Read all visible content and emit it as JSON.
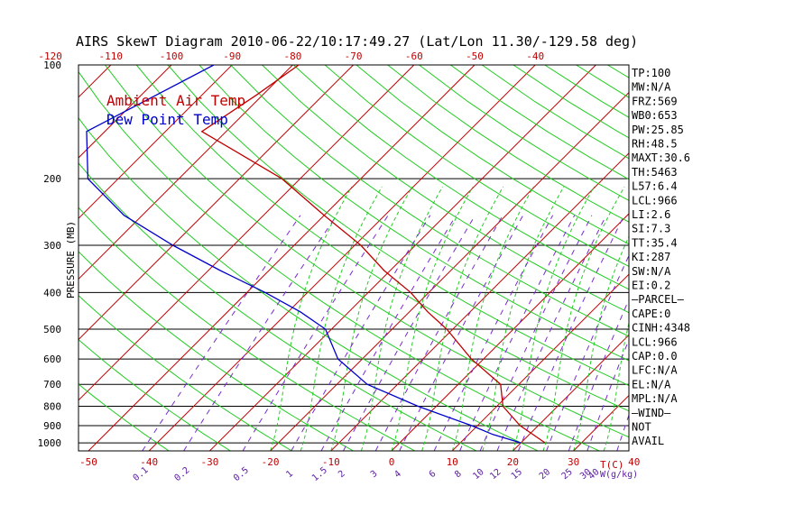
{
  "chart_data": {
    "type": "line",
    "title": "AIRS SkewT Diagram 2010-06-22/10:17:49.27 (Lat/Lon 11.30/-129.58 deg)",
    "ylabel": "PRESSURE (MB)",
    "xlabel": "T(C)",
    "mixing_ratio_unit": "W(g/kg)",
    "pressure_ticks": [
      100,
      200,
      300,
      400,
      500,
      600,
      700,
      800,
      900,
      1000
    ],
    "temperature_ticks_top": [
      "-120",
      "-110",
      "-100",
      "-90",
      "-80",
      "-70",
      "-60",
      "-50",
      "-40"
    ],
    "temperature_ticks_bottom": [
      "-50",
      "-40",
      "-30",
      "-20",
      "-10",
      "0",
      "10",
      "20",
      "30",
      "40"
    ],
    "mixing_ratio_ticks": [
      "0.1",
      "0.2",
      "0.5",
      "1",
      "1.5",
      "2",
      "3",
      "4",
      "6",
      "8",
      "10",
      "12",
      "15",
      "20",
      "25",
      "30",
      "40"
    ],
    "legend": [
      {
        "name": "Ambient Air Temp",
        "color": "#c00000"
      },
      {
        "name": "Dew Point Temp",
        "color": "#0000cc"
      }
    ],
    "series": [
      {
        "name": "Ambient Air Temp",
        "color": "#c00000",
        "points": [
          {
            "p": 100,
            "t": -79
          },
          {
            "p": 120,
            "t": -81
          },
          {
            "p": 150,
            "t": -84
          },
          {
            "p": 200,
            "t": -63
          },
          {
            "p": 250,
            "t": -50
          },
          {
            "p": 300,
            "t": -39
          },
          {
            "p": 350,
            "t": -31
          },
          {
            "p": 400,
            "t": -23
          },
          {
            "p": 450,
            "t": -17
          },
          {
            "p": 500,
            "t": -11
          },
          {
            "p": 600,
            "t": -2
          },
          {
            "p": 700,
            "t": 7
          },
          {
            "p": 800,
            "t": 11
          },
          {
            "p": 900,
            "t": 17
          },
          {
            "p": 1000,
            "t": 24
          }
        ]
      },
      {
        "name": "Dew Point Temp",
        "color": "#0000cc",
        "points": [
          {
            "p": 100,
            "t": -93
          },
          {
            "p": 150,
            "t": -103
          },
          {
            "p": 200,
            "t": -95
          },
          {
            "p": 250,
            "t": -83
          },
          {
            "p": 300,
            "t": -70
          },
          {
            "p": 350,
            "t": -58
          },
          {
            "p": 400,
            "t": -47
          },
          {
            "p": 450,
            "t": -38
          },
          {
            "p": 500,
            "t": -31
          },
          {
            "p": 600,
            "t": -24
          },
          {
            "p": 700,
            "t": -15
          },
          {
            "p": 800,
            "t": -3
          },
          {
            "p": 900,
            "t": 9
          },
          {
            "p": 950,
            "t": 14
          },
          {
            "p": 1000,
            "t": 20
          }
        ]
      }
    ]
  },
  "indices": [
    "TP:100",
    "MW:N/A",
    "FRZ:569",
    "WB0:653",
    "PW:25.85",
    "RH:48.5",
    "MAXT:30.6",
    "TH:5463",
    "L57:6.4",
    "LCL:966",
    "LI:2.6",
    "SI:7.3",
    "TT:35.4",
    "KI:287",
    "SW:N/A",
    "EI:0.2",
    "–PARCEL–",
    "CAPE:0",
    "CINH:4348",
    "LCL:966",
    "CAP:0.0",
    "LFC:N/A",
    "EL:N/A",
    "MPL:N/A",
    "–WIND–",
    "NOT",
    "AVAIL"
  ]
}
